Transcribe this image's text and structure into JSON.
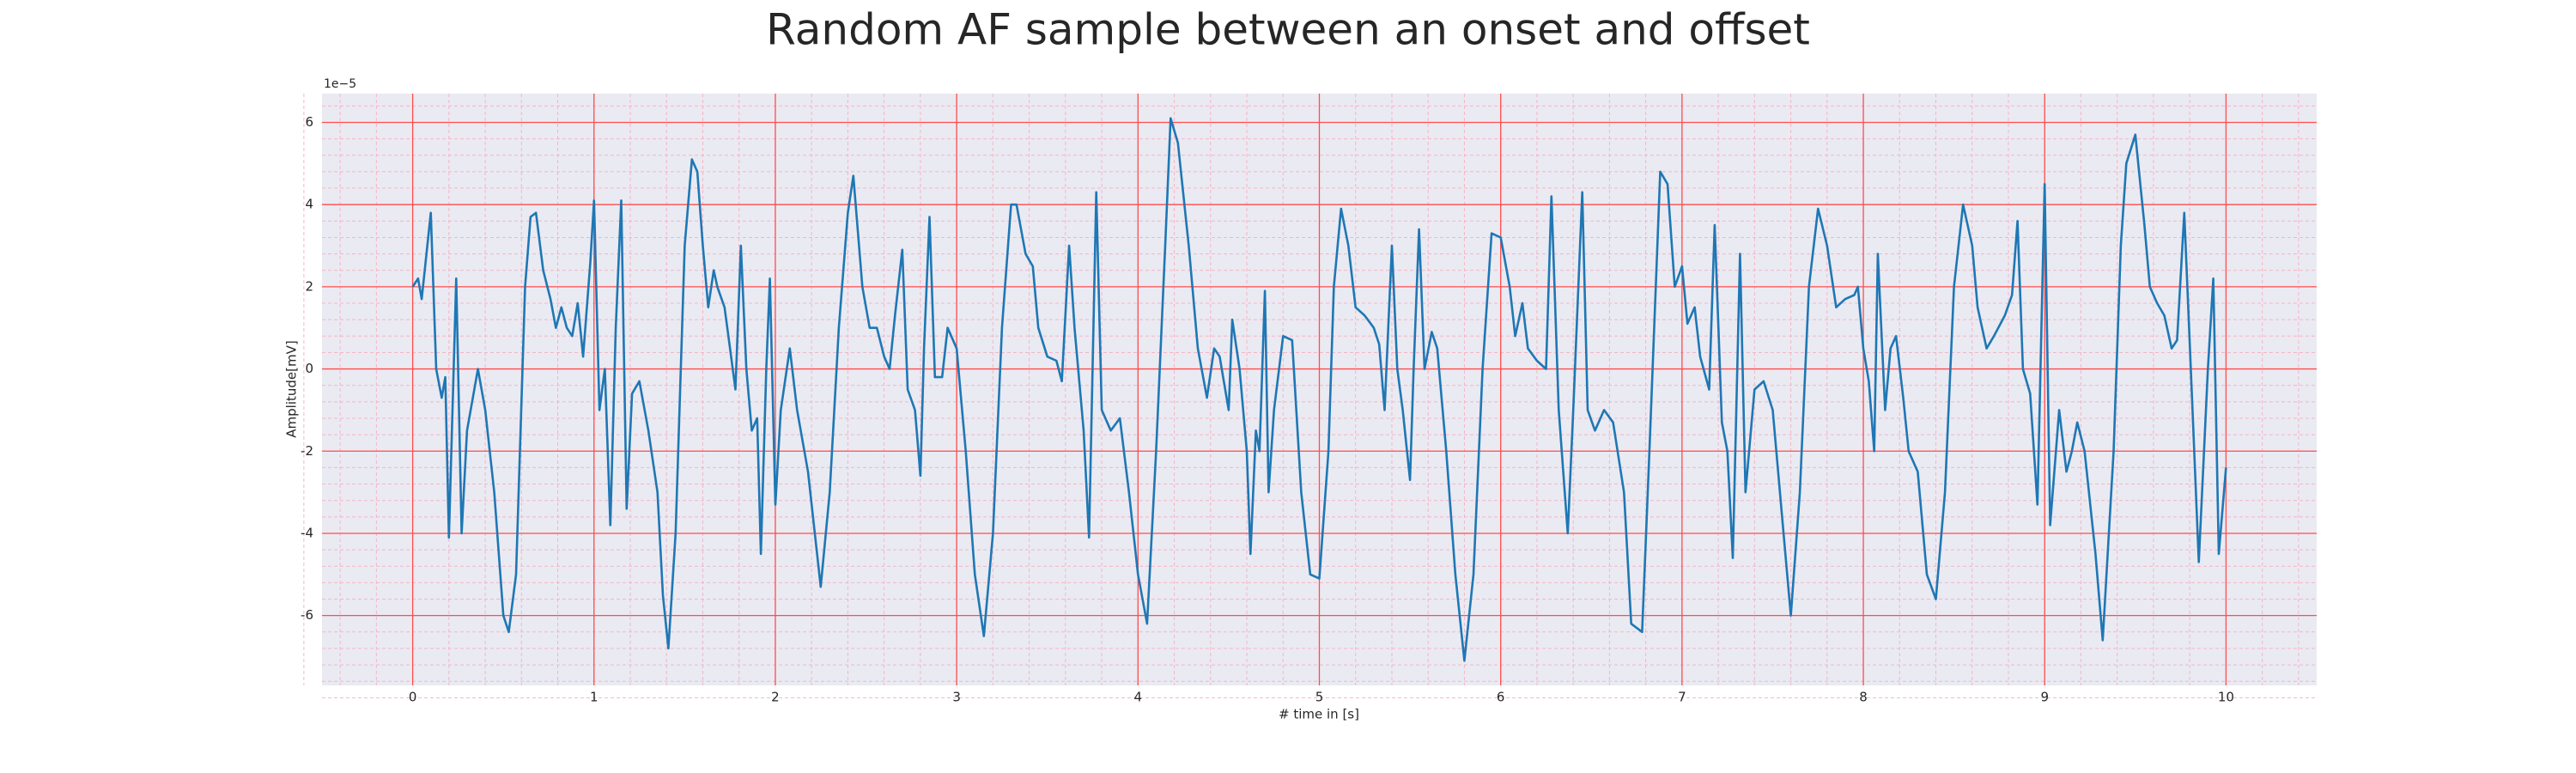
{
  "chart_data": {
    "type": "line",
    "title": "Random AF sample between an onset and offset",
    "x_label": "# time in [s]",
    "y_label": "Amplitude[mV]",
    "y_offset_text": "1e−5",
    "xlim": [
      -0.5,
      10.5
    ],
    "ylim": [
      -7.7,
      6.7
    ],
    "xticks": [
      0,
      1,
      2,
      3,
      4,
      5,
      6,
      7,
      8,
      9,
      10
    ],
    "yticks": [
      -6,
      -4,
      -2,
      0,
      2,
      4,
      6
    ],
    "grid": true,
    "minor_grid": true,
    "grid_color": "#ff4d4d",
    "minor_grid_color": "#f5b5c5",
    "background": "#eaeaf2",
    "color": "#1f77b4",
    "x": [
      0,
      0.03,
      0.05,
      0.1,
      0.13,
      0.16,
      0.18,
      0.2,
      0.24,
      0.27,
      0.3,
      0.36,
      0.4,
      0.45,
      0.5,
      0.53,
      0.57,
      0.62,
      0.65,
      0.68,
      0.72,
      0.76,
      0.79,
      0.82,
      0.85,
      0.88,
      0.91,
      0.94,
      0.98,
      1.0,
      1.03,
      1.06,
      1.09,
      1.12,
      1.15,
      1.18,
      1.21,
      1.25,
      1.3,
      1.35,
      1.38,
      1.41,
      1.45,
      1.5,
      1.54,
      1.57,
      1.6,
      1.63,
      1.66,
      1.68,
      1.72,
      1.75,
      1.78,
      1.81,
      1.84,
      1.87,
      1.9,
      1.92,
      1.95,
      1.97,
      2.0,
      2.03,
      2.08,
      2.12,
      2.18,
      2.25,
      2.3,
      2.35,
      2.4,
      2.43,
      2.48,
      2.52,
      2.56,
      2.6,
      2.63,
      2.66,
      2.7,
      2.73,
      2.77,
      2.8,
      2.82,
      2.85,
      2.88,
      2.92,
      2.95,
      3.0,
      3.05,
      3.1,
      3.15,
      3.2,
      3.25,
      3.3,
      3.33,
      3.38,
      3.42,
      3.45,
      3.5,
      3.55,
      3.58,
      3.62,
      3.65,
      3.7,
      3.73,
      3.77,
      3.8,
      3.85,
      3.9,
      3.95,
      4.0,
      4.05,
      4.1,
      4.15,
      4.18,
      4.22,
      4.28,
      4.33,
      4.38,
      4.42,
      4.45,
      4.5,
      4.52,
      4.56,
      4.6,
      4.62,
      4.65,
      4.67,
      4.7,
      4.72,
      4.75,
      4.8,
      4.85,
      4.9,
      4.95,
      5.0,
      5.05,
      5.08,
      5.12,
      5.16,
      5.2,
      5.25,
      5.3,
      5.33,
      5.36,
      5.4,
      5.43,
      5.46,
      5.5,
      5.52,
      5.55,
      5.58,
      5.62,
      5.65,
      5.7,
      5.75,
      5.8,
      5.85,
      5.9,
      5.95,
      6.0,
      6.05,
      6.08,
      6.12,
      6.15,
      6.2,
      6.25,
      6.28,
      6.32,
      6.37,
      6.4,
      6.45,
      6.48,
      6.52,
      6.57,
      6.62,
      6.68,
      6.72,
      6.78,
      6.82,
      6.88,
      6.92,
      6.96,
      7.0,
      7.03,
      7.07,
      7.1,
      7.15,
      7.18,
      7.22,
      7.25,
      7.28,
      7.32,
      7.35,
      7.4,
      7.45,
      7.5,
      7.55,
      7.6,
      7.65,
      7.7,
      7.75,
      7.8,
      7.85,
      7.9,
      7.95,
      7.97,
      8.0,
      8.03,
      8.06,
      8.08,
      8.12,
      8.15,
      8.18,
      8.22,
      8.25,
      8.3,
      8.35,
      8.4,
      8.45,
      8.5,
      8.55,
      8.6,
      8.63,
      8.68,
      8.72,
      8.78,
      8.82,
      8.85,
      8.88,
      8.92,
      8.96,
      9.0,
      9.03,
      9.08,
      9.12,
      9.15,
      9.18,
      9.22,
      9.28,
      9.32,
      9.38,
      9.42,
      9.45,
      9.5,
      9.55,
      9.58,
      9.62,
      9.66,
      9.7,
      9.73,
      9.77,
      9.82,
      9.85,
      9.9,
      9.93,
      9.96,
      10.0
    ],
    "values": [
      2.0,
      2.2,
      1.7,
      3.8,
      0,
      -0.7,
      -0.2,
      -4.1,
      2.2,
      -4.0,
      -1.5,
      0,
      -1.0,
      -3.0,
      -6.0,
      -6.4,
      -5.0,
      2.0,
      3.7,
      3.8,
      2.4,
      1.7,
      1.0,
      1.5,
      1.0,
      0.8,
      1.6,
      0.3,
      2.6,
      4.1,
      -1.0,
      0,
      -3.8,
      1.0,
      4.1,
      -3.4,
      -0.6,
      -0.3,
      -1.5,
      -3.0,
      -5.5,
      -6.8,
      -4.0,
      3.0,
      5.1,
      4.8,
      3.0,
      1.5,
      2.4,
      2.0,
      1.5,
      0.5,
      -0.5,
      3.0,
      0,
      -1.5,
      -1.2,
      -4.5,
      0,
      2.2,
      -3.3,
      -1.0,
      0.5,
      -1.0,
      -2.5,
      -5.3,
      -3.0,
      1.0,
      3.8,
      4.7,
      2.0,
      1.0,
      1.0,
      0.3,
      0,
      1.3,
      2.9,
      -0.5,
      -1.0,
      -2.6,
      0.5,
      3.7,
      -0.2,
      -0.2,
      1.0,
      0.5,
      -2.0,
      -5.0,
      -6.5,
      -4.0,
      1.0,
      4.0,
      4.0,
      2.8,
      2.5,
      1.0,
      0.3,
      0.2,
      -0.3,
      3.0,
      1.0,
      -1.5,
      -4.1,
      4.3,
      -1.0,
      -1.5,
      -1.2,
      -3.0,
      -5.0,
      -6.2,
      -2.0,
      3.0,
      6.1,
      5.5,
      3.0,
      0.5,
      -0.7,
      0.5,
      0.3,
      -1.0,
      1.2,
      0,
      -2.0,
      -4.5,
      -1.5,
      -2.0,
      1.9,
      -3.0,
      -1.0,
      0.8,
      0.7,
      -3.0,
      -5.0,
      -5.1,
      -2.0,
      2.0,
      3.9,
      3.0,
      1.5,
      1.3,
      1.0,
      0.6,
      -1.0,
      3.0,
      0,
      -1.0,
      -2.7,
      0,
      3.4,
      0,
      0.9,
      0.5,
      -2.0,
      -5.0,
      -7.1,
      -5.0,
      0,
      3.3,
      3.2,
      2.0,
      0.8,
      1.6,
      0.5,
      0.2,
      0,
      4.2,
      -1.0,
      -4.0,
      -1.0,
      4.3,
      -1.0,
      -1.5,
      -1.0,
      -1.3,
      -3.0,
      -6.2,
      -6.4,
      -2.0,
      4.8,
      4.5,
      2.0,
      2.5,
      1.1,
      1.5,
      0.3,
      -0.5,
      3.5,
      -1.3,
      -2.0,
      -4.6,
      2.8,
      -3.0,
      -0.5,
      -0.3,
      -1.0,
      -3.5,
      -6.0,
      -3.0,
      2.0,
      3.9,
      3.0,
      1.5,
      1.7,
      1.8,
      2.0,
      0.5,
      -0.3,
      -2.0,
      2.8,
      -1.0,
      0.5,
      0.8,
      -0.7,
      -2.0,
      -2.5,
      -5.0,
      -5.6,
      -3.0,
      2.0,
      4.0,
      3.0,
      1.5,
      0.5,
      0.8,
      1.3,
      1.8,
      3.6,
      0,
      -0.6,
      -3.3,
      4.5,
      -3.8,
      -1.0,
      -2.5,
      -2.0,
      -1.3,
      -2.0,
      -4.5,
      -6.6,
      -2.0,
      3.0,
      5.0,
      5.7,
      3.5,
      2.0,
      1.6,
      1.3,
      0.5,
      0.7,
      3.8,
      -1.5,
      -4.7,
      0,
      2.2,
      -4.5,
      -2.4
    ]
  }
}
